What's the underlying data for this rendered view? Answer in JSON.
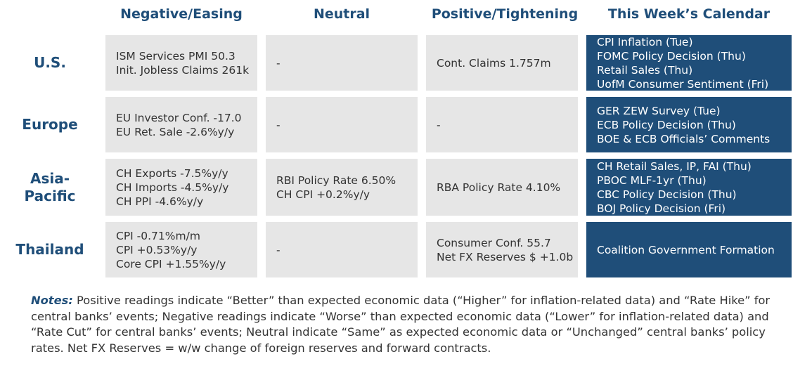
{
  "headers": {
    "negative": "Negative/Easing",
    "neutral": "Neutral",
    "positive": "Positive/Tightening",
    "calendar": "This Week’s Calendar"
  },
  "rows": [
    {
      "label": "U.S.",
      "negative": [
        "ISM Services PMI 50.3",
        "Init. Jobless Claims 261k"
      ],
      "neutral": [
        "-"
      ],
      "positive": [
        "Cont. Claims 1.757m"
      ],
      "calendar": [
        "CPI Inflation (Tue)",
        "FOMC Policy Decision (Thu)",
        "Retail Sales (Thu)",
        "UofM Consumer Sentiment (Fri)"
      ]
    },
    {
      "label": "Europe",
      "negative": [
        "EU Investor Conf. -17.0",
        "EU Ret. Sale -2.6%y/y"
      ],
      "neutral": [
        "-"
      ],
      "positive": [
        "-"
      ],
      "calendar": [
        "GER ZEW Survey (Tue)",
        "ECB Policy Decision (Thu)",
        "BOE & ECB Officials’ Comments"
      ]
    },
    {
      "label": "Asia-\nPacific",
      "negative": [
        "CH Exports -7.5%y/y",
        "CH Imports -4.5%y/y",
        "CH PPI -4.6%y/y"
      ],
      "neutral": [
        "RBI Policy Rate 6.50%",
        "CH CPI +0.2%y/y"
      ],
      "positive": [
        "RBA Policy Rate 4.10%"
      ],
      "calendar": [
        "CH Retail Sales, IP, FAI (Thu)",
        "PBOC MLF-1yr (Thu)",
        "CBC Policy Decision (Thu)",
        "BOJ Policy Decision (Fri)"
      ]
    },
    {
      "label": "Thailand",
      "negative": [
        "CPI -0.71%m/m",
        "CPI +0.53%y/y",
        "Core CPI +1.55%y/y"
      ],
      "neutral": [
        "-"
      ],
      "positive": [
        "Consumer Conf. 55.7",
        "Net FX Reserves $ +1.0b"
      ],
      "calendar": [
        "Coalition Government Formation"
      ]
    }
  ],
  "notes": {
    "label": "Notes:",
    "text": " Positive readings indicate “Better” than expected economic data (“Higher” for inflation-related data) and “Rate Hike” for central banks’ events; Negative readings indicate “Worse” than expected economic data (“Lower” for inflation-related data) and “Rate Cut” for central banks’ events; Neutral indicate “Same” as expected economic data or “Unchanged” central banks’ policy rates. Net FX Reserves = w/w change of foreign reserves and forward contracts."
  },
  "colors": {
    "heading": "#1f4e79",
    "cell_bg": "#e6e6e6",
    "calendar_bg": "#1f4e79",
    "calendar_text": "#ffffff",
    "body_text": "#333333"
  }
}
